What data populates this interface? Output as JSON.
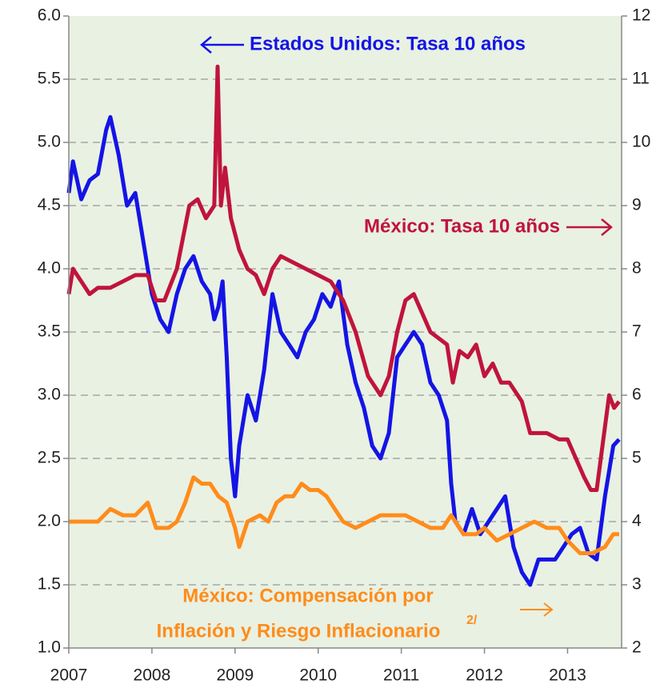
{
  "chart_data": {
    "type": "line",
    "xlim": [
      2007,
      2013.65
    ],
    "xticks": [
      2007,
      2008,
      2009,
      2010,
      2011,
      2012,
      2013
    ],
    "ylim": [
      1.0,
      6.0
    ],
    "yticks": [
      {
        "value": 1.0,
        "label": "1.0"
      },
      1.5,
      {
        "value": 2.0,
        "label": "2.0"
      },
      2.5,
      {
        "value": 3.0,
        "label": "3.0"
      },
      3.5,
      {
        "value": 4.0,
        "label": "4.0"
      },
      4.5,
      {
        "value": 5.0,
        "label": "5.0"
      },
      5.5,
      {
        "value": 6.0,
        "label": "6.0"
      }
    ],
    "y2lim": [
      2,
      12
    ],
    "y2ticks": [
      2,
      3,
      4,
      5,
      6,
      7,
      8,
      9,
      10,
      11,
      12
    ],
    "grid": true,
    "annotations": [
      "Estados Unidos: Tasa 10 años",
      "México: Tasa 10 años",
      "México: Compensación por",
      "Inflación y Riesgo Inflacionario",
      "2/"
    ],
    "series": [
      {
        "name": "Estados Unidos: Tasa 10 años",
        "color": "#1414e6",
        "axis": "y",
        "x": [
          2007.0,
          2007.05,
          2007.15,
          2007.25,
          2007.35,
          2007.45,
          2007.5,
          2007.6,
          2007.7,
          2007.8,
          2007.9,
          2008.0,
          2008.1,
          2008.2,
          2008.3,
          2008.4,
          2008.5,
          2008.6,
          2008.7,
          2008.75,
          2008.8,
          2008.85,
          2008.9,
          2008.95,
          2009.0,
          2009.05,
          2009.15,
          2009.25,
          2009.35,
          2009.45,
          2009.55,
          2009.65,
          2009.75,
          2009.85,
          2009.95,
          2010.05,
          2010.15,
          2010.25,
          2010.35,
          2010.45,
          2010.55,
          2010.65,
          2010.75,
          2010.85,
          2010.95,
          2011.05,
          2011.15,
          2011.25,
          2011.35,
          2011.45,
          2011.55,
          2011.6,
          2011.65,
          2011.75,
          2011.85,
          2011.95,
          2012.05,
          2012.15,
          2012.25,
          2012.35,
          2012.45,
          2012.55,
          2012.65,
          2012.75,
          2012.85,
          2012.95,
          2013.05,
          2013.15,
          2013.25,
          2013.35,
          2013.45,
          2013.55,
          2013.62
        ],
        "values": [
          4.6,
          4.85,
          4.55,
          4.7,
          4.75,
          5.1,
          5.2,
          4.9,
          4.5,
          4.6,
          4.2,
          3.8,
          3.6,
          3.5,
          3.8,
          4.0,
          4.1,
          3.9,
          3.8,
          3.6,
          3.7,
          3.9,
          3.3,
          2.5,
          2.2,
          2.6,
          3.0,
          2.8,
          3.2,
          3.8,
          3.5,
          3.4,
          3.3,
          3.5,
          3.6,
          3.8,
          3.7,
          3.9,
          3.4,
          3.1,
          2.9,
          2.6,
          2.5,
          2.7,
          3.3,
          3.4,
          3.5,
          3.4,
          3.1,
          3.0,
          2.8,
          2.3,
          2.0,
          1.9,
          2.1,
          1.9,
          2.0,
          2.1,
          2.2,
          1.8,
          1.6,
          1.5,
          1.7,
          1.7,
          1.7,
          1.8,
          1.9,
          1.95,
          1.75,
          1.7,
          2.2,
          2.6,
          2.65
        ]
      },
      {
        "name": "México: Tasa 10 años",
        "color": "#c0143c",
        "axis": "y2",
        "x": [
          2007.0,
          2007.05,
          2007.15,
          2007.25,
          2007.35,
          2007.5,
          2007.65,
          2007.8,
          2007.95,
          2008.05,
          2008.15,
          2008.3,
          2008.45,
          2008.55,
          2008.65,
          2008.75,
          2008.79,
          2008.83,
          2008.88,
          2008.95,
          2009.05,
          2009.15,
          2009.25,
          2009.35,
          2009.45,
          2009.55,
          2009.7,
          2009.85,
          2010.0,
          2010.15,
          2010.3,
          2010.45,
          2010.6,
          2010.75,
          2010.85,
          2010.95,
          2011.05,
          2011.15,
          2011.25,
          2011.35,
          2011.45,
          2011.55,
          2011.62,
          2011.7,
          2011.8,
          2011.9,
          2012.0,
          2012.1,
          2012.2,
          2012.3,
          2012.45,
          2012.55,
          2012.65,
          2012.75,
          2012.9,
          2013.0,
          2013.1,
          2013.2,
          2013.28,
          2013.35,
          2013.42,
          2013.5,
          2013.56,
          2013.62
        ],
        "values": [
          7.6,
          8.0,
          7.8,
          7.6,
          7.7,
          7.7,
          7.8,
          7.9,
          7.9,
          7.5,
          7.5,
          8.0,
          9.0,
          9.1,
          8.8,
          9.0,
          11.2,
          9.0,
          9.6,
          8.8,
          8.3,
          8.0,
          7.9,
          7.6,
          8.0,
          8.2,
          8.1,
          8.0,
          7.9,
          7.8,
          7.5,
          7.0,
          6.3,
          6.0,
          6.3,
          7.0,
          7.5,
          7.6,
          7.3,
          7.0,
          6.9,
          6.8,
          6.2,
          6.7,
          6.6,
          6.8,
          6.3,
          6.5,
          6.2,
          6.2,
          5.9,
          5.4,
          5.4,
          5.4,
          5.3,
          5.3,
          5.0,
          4.7,
          4.5,
          4.5,
          5.2,
          6.0,
          5.8,
          5.9
        ]
      },
      {
        "name": "México: Compensación por Inflación y Riesgo Inflacionario",
        "color": "#ff8c1a",
        "axis": "y2",
        "x": [
          2007.0,
          2007.2,
          2007.35,
          2007.5,
          2007.65,
          2007.8,
          2007.95,
          2008.05,
          2008.2,
          2008.3,
          2008.4,
          2008.5,
          2008.6,
          2008.7,
          2008.8,
          2008.9,
          2009.0,
          2009.05,
          2009.15,
          2009.3,
          2009.4,
          2009.5,
          2009.6,
          2009.7,
          2009.8,
          2009.9,
          2010.0,
          2010.1,
          2010.2,
          2010.3,
          2010.45,
          2010.6,
          2010.75,
          2010.9,
          2011.05,
          2011.2,
          2011.35,
          2011.5,
          2011.6,
          2011.75,
          2011.9,
          2012.0,
          2012.15,
          2012.3,
          2012.45,
          2012.6,
          2012.75,
          2012.9,
          2013.0,
          2013.15,
          2013.3,
          2013.45,
          2013.55,
          2013.62
        ],
        "values": [
          4.0,
          4.0,
          4.0,
          4.2,
          4.1,
          4.1,
          4.3,
          3.9,
          3.9,
          4.0,
          4.3,
          4.7,
          4.6,
          4.6,
          4.4,
          4.3,
          3.9,
          3.6,
          4.0,
          4.1,
          4.0,
          4.3,
          4.4,
          4.4,
          4.6,
          4.5,
          4.5,
          4.4,
          4.2,
          4.0,
          3.9,
          4.0,
          4.1,
          4.1,
          4.1,
          4.0,
          3.9,
          3.9,
          4.1,
          3.8,
          3.8,
          3.9,
          3.7,
          3.8,
          3.9,
          4.0,
          3.9,
          3.9,
          3.7,
          3.5,
          3.5,
          3.6,
          3.8,
          3.8
        ]
      }
    ]
  }
}
